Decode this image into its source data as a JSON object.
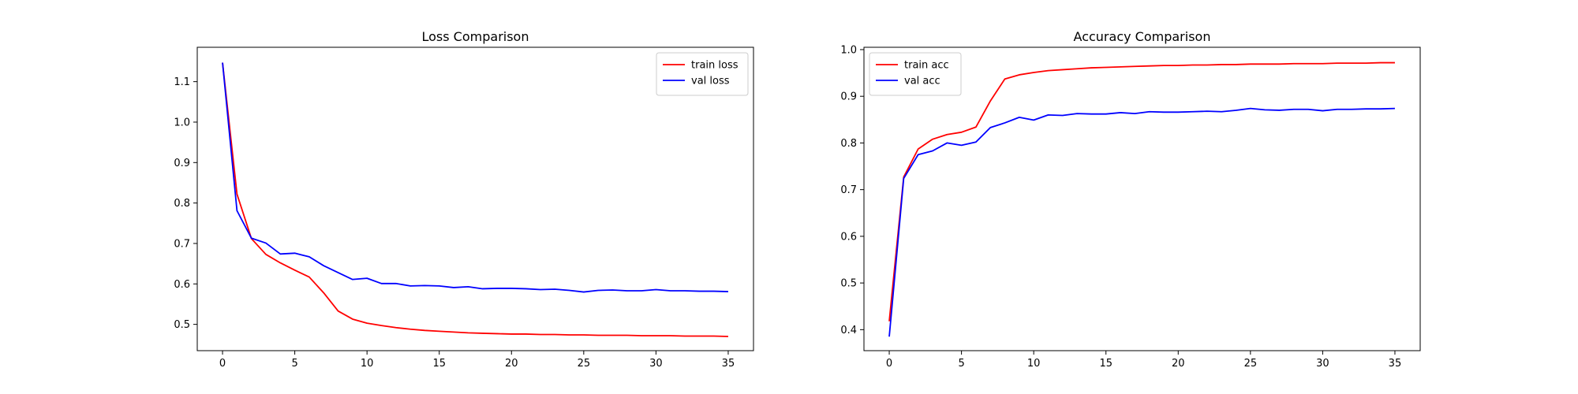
{
  "chart_data": [
    {
      "type": "line",
      "title": "Loss Comparison",
      "xlabel": "",
      "ylabel": "",
      "xlim": [
        -1.75,
        36.75
      ],
      "ylim": [
        0.435,
        1.185
      ],
      "xticks": [
        0,
        5,
        10,
        15,
        20,
        25,
        30,
        35
      ],
      "yticks": [
        0.5,
        0.6,
        0.7,
        0.8,
        0.9,
        1.0,
        1.1
      ],
      "ytick_labels": [
        "0.5",
        "0.6",
        "0.7",
        "0.8",
        "0.9",
        "1.0",
        "1.1"
      ],
      "grid": false,
      "legend_position": "top-right",
      "x": [
        0,
        1,
        2,
        3,
        4,
        5,
        6,
        7,
        8,
        9,
        10,
        11,
        12,
        13,
        14,
        15,
        16,
        17,
        18,
        19,
        20,
        21,
        22,
        23,
        24,
        25,
        26,
        27,
        28,
        29,
        30,
        31,
        32,
        33,
        34,
        35
      ],
      "series": [
        {
          "name": "train loss",
          "color": "#ff0000",
          "values": [
            1.147,
            0.822,
            0.712,
            0.673,
            0.652,
            0.634,
            0.617,
            0.578,
            0.533,
            0.513,
            0.503,
            0.497,
            0.492,
            0.488,
            0.485,
            0.483,
            0.481,
            0.479,
            0.478,
            0.477,
            0.476,
            0.476,
            0.475,
            0.475,
            0.474,
            0.474,
            0.473,
            0.473,
            0.473,
            0.472,
            0.472,
            0.472,
            0.471,
            0.471,
            0.471,
            0.47
          ]
        },
        {
          "name": "val loss",
          "color": "#0000ff",
          "values": [
            1.147,
            0.781,
            0.713,
            0.701,
            0.674,
            0.676,
            0.667,
            0.645,
            0.628,
            0.611,
            0.614,
            0.601,
            0.601,
            0.595,
            0.596,
            0.595,
            0.591,
            0.593,
            0.588,
            0.589,
            0.589,
            0.588,
            0.586,
            0.587,
            0.584,
            0.58,
            0.584,
            0.585,
            0.583,
            0.583,
            0.586,
            0.583,
            0.583,
            0.582,
            0.582,
            0.581
          ]
        }
      ]
    },
    {
      "type": "line",
      "title": "Accuracy Comparison",
      "xlabel": "",
      "ylabel": "",
      "xlim": [
        -1.75,
        36.75
      ],
      "ylim": [
        0.355,
        1.005
      ],
      "xticks": [
        0,
        5,
        10,
        15,
        20,
        25,
        30,
        35
      ],
      "yticks": [
        0.4,
        0.5,
        0.6,
        0.7,
        0.8,
        0.9,
        1.0
      ],
      "ytick_labels": [
        "0.4",
        "0.5",
        "0.6",
        "0.7",
        "0.8",
        "0.9",
        "1.0"
      ],
      "grid": false,
      "legend_position": "top-left",
      "x": [
        0,
        1,
        2,
        3,
        4,
        5,
        6,
        7,
        8,
        9,
        10,
        11,
        12,
        13,
        14,
        15,
        16,
        17,
        18,
        19,
        20,
        21,
        22,
        23,
        24,
        25,
        26,
        27,
        28,
        29,
        30,
        31,
        32,
        33,
        34,
        35
      ],
      "series": [
        {
          "name": "train acc",
          "color": "#ff0000",
          "values": [
            0.418,
            0.727,
            0.787,
            0.808,
            0.818,
            0.823,
            0.834,
            0.89,
            0.937,
            0.946,
            0.951,
            0.955,
            0.957,
            0.959,
            0.961,
            0.962,
            0.963,
            0.964,
            0.965,
            0.966,
            0.966,
            0.967,
            0.967,
            0.968,
            0.968,
            0.969,
            0.969,
            0.969,
            0.97,
            0.97,
            0.97,
            0.971,
            0.971,
            0.971,
            0.972,
            0.972
          ]
        },
        {
          "name": "val acc",
          "color": "#0000ff",
          "values": [
            0.385,
            0.724,
            0.775,
            0.783,
            0.8,
            0.795,
            0.802,
            0.833,
            0.843,
            0.855,
            0.849,
            0.86,
            0.859,
            0.863,
            0.862,
            0.862,
            0.865,
            0.863,
            0.867,
            0.866,
            0.866,
            0.867,
            0.868,
            0.867,
            0.87,
            0.874,
            0.871,
            0.87,
            0.872,
            0.872,
            0.869,
            0.872,
            0.872,
            0.873,
            0.873,
            0.874
          ]
        }
      ]
    }
  ]
}
